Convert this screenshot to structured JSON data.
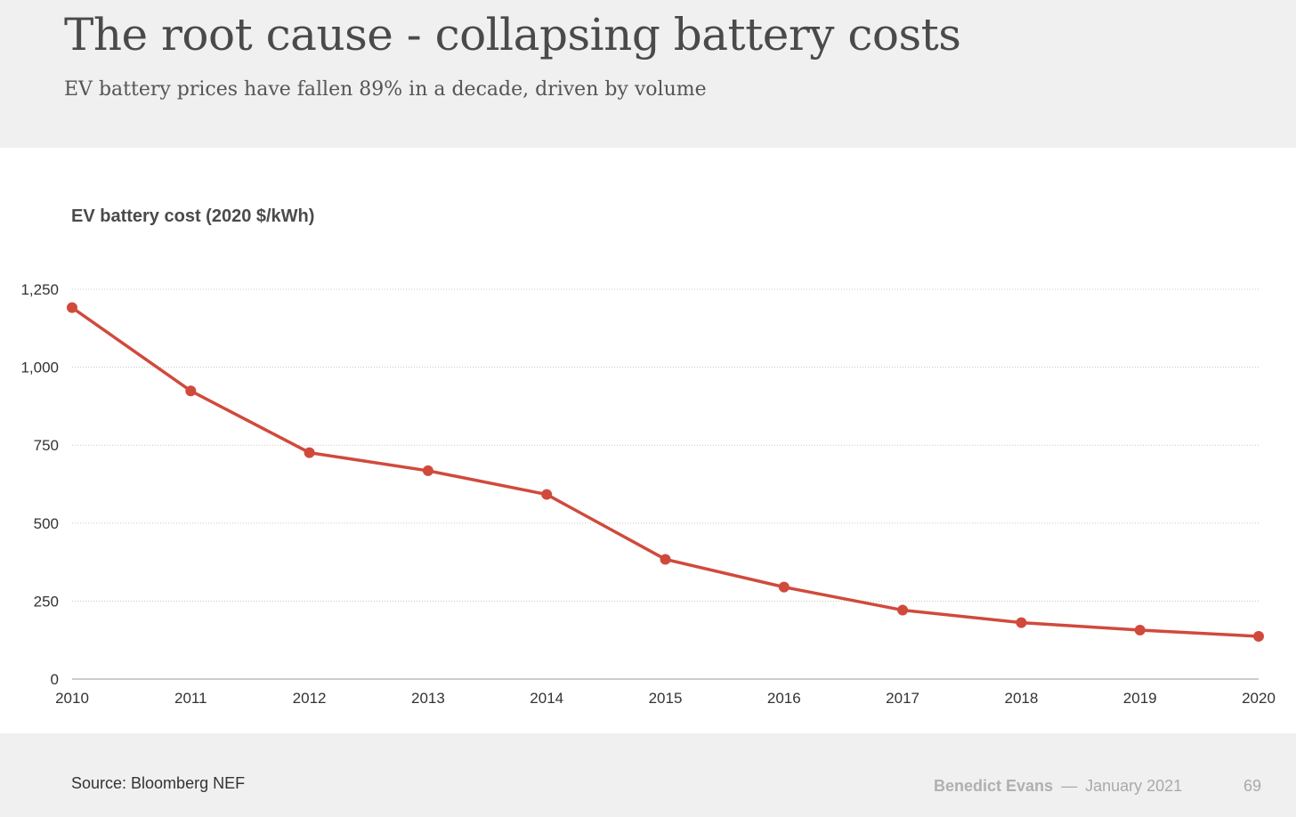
{
  "header": {
    "title": "The root cause - collapsing battery costs",
    "subtitle": "EV battery prices have fallen 89% in a decade, driven by volume"
  },
  "chart_data": {
    "type": "line",
    "title": "EV battery cost (2020 $/kWh)",
    "xlabel": "",
    "ylabel": "",
    "x": [
      "2010",
      "2011",
      "2012",
      "2013",
      "2014",
      "2015",
      "2016",
      "2017",
      "2018",
      "2019",
      "2020"
    ],
    "series": [
      {
        "name": "EV battery cost",
        "color": "#d04a3c",
        "values": [
          1191,
          924,
          726,
          668,
          592,
          384,
          295,
          221,
          181,
          157,
          137
        ]
      }
    ],
    "ylim": [
      0,
      1250
    ],
    "yticks": [
      0,
      250,
      500,
      750,
      1000,
      1250
    ],
    "ytick_labels": [
      "0",
      "250",
      "500",
      "750",
      "1,000",
      "1,250"
    ],
    "grid": true
  },
  "footer": {
    "source": "Source: Bloomberg NEF",
    "author": "Benedict Evans",
    "separator": "—",
    "date": "January 2021",
    "page": "69"
  }
}
